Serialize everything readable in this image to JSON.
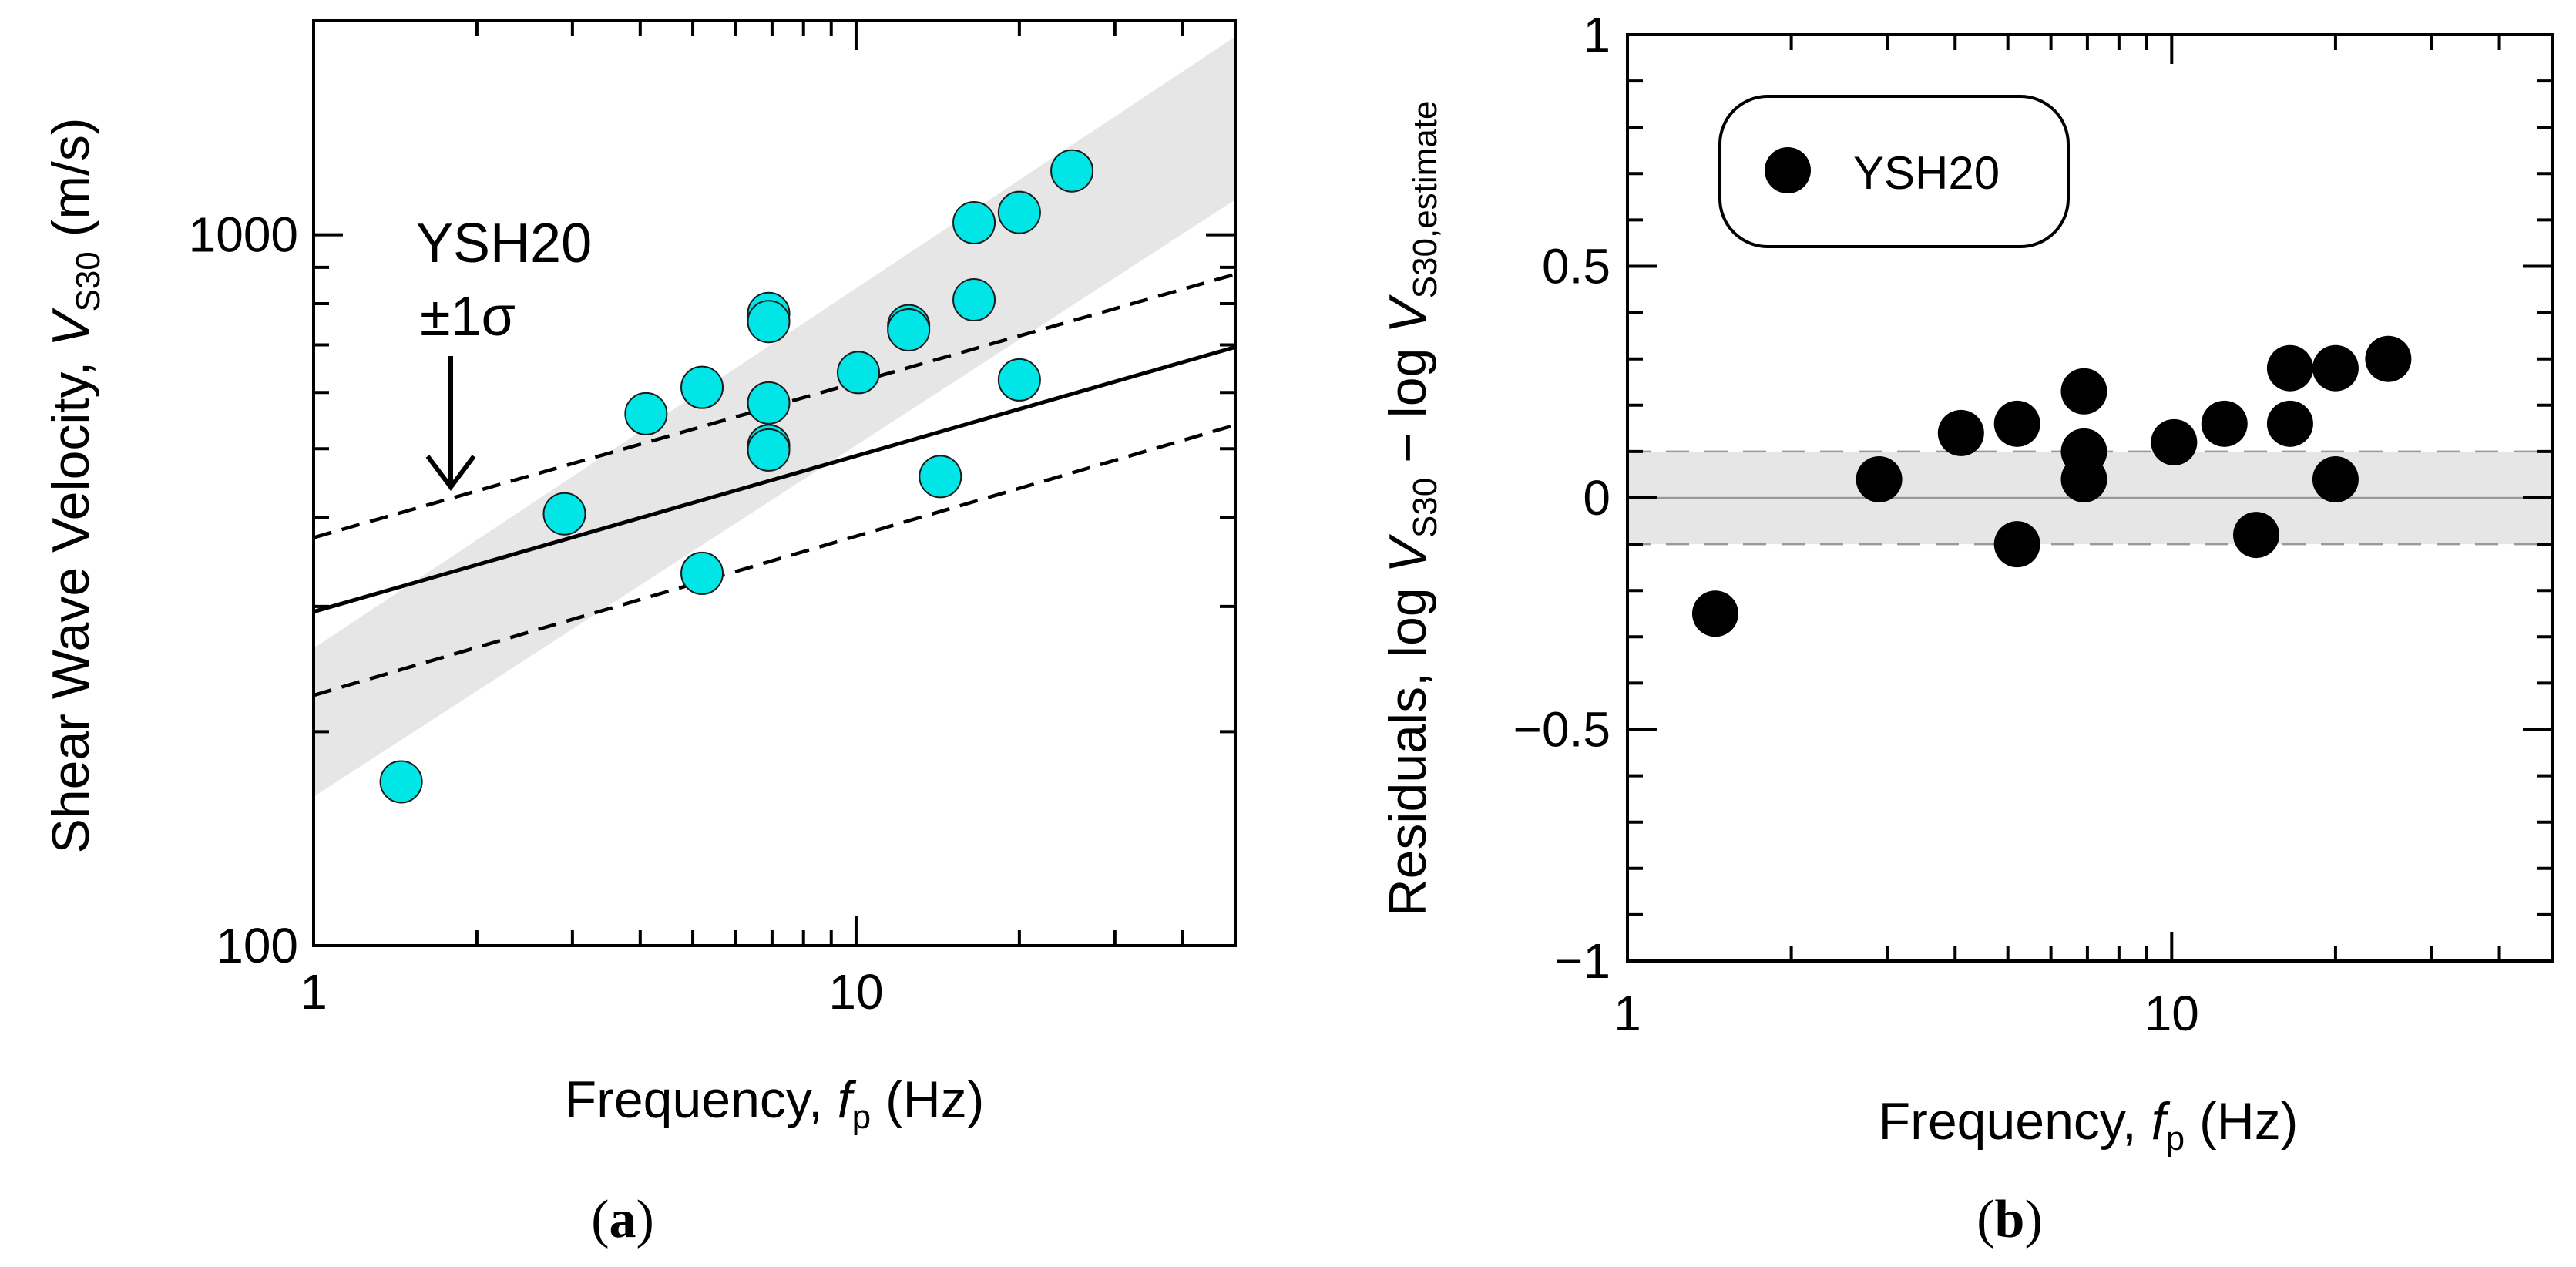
{
  "figure": {
    "panel_labels": [
      "(",
      "a",
      ")",
      "(",
      "b",
      ")"
    ]
  },
  "chart_data": [
    {
      "type": "scatter",
      "panel": "a",
      "x_scale": "log",
      "y_scale": "log",
      "xlim": [
        1,
        50
      ],
      "ylim": [
        100,
        2000
      ],
      "x_ticks": [
        1,
        10
      ],
      "x_tick_labels": [
        "1",
        "10"
      ],
      "y_ticks": [
        100,
        1000
      ],
      "y_tick_labels": [
        "100",
        "1000"
      ],
      "xlabel": {
        "pre": "Frequency, ",
        "var": "f",
        "sub": "p",
        "post": " (Hz)"
      },
      "ylabel": {
        "pre": "Shear Wave Velocity,  ",
        "var": "V",
        "sub": "S30",
        "post": " (m/s)"
      },
      "annotation": {
        "line1": "YSH20",
        "line2": "±1σ"
      },
      "colors": {
        "points": "#00e6e6",
        "points_edge": "#1a1a1a",
        "band": "#e6e6e6"
      },
      "band": {
        "x": [
          1,
          50
        ],
        "lower": [
          162,
          1120
        ],
        "upper": [
          262,
          1900
        ]
      },
      "model": {
        "name": "YSH20",
        "x": [
          1,
          50
        ],
        "y": [
          295,
          695
        ]
      },
      "model_plus_sigma": {
        "x": [
          1,
          50
        ],
        "y": [
          375,
          880
        ]
      },
      "model_minus_sigma": {
        "x": [
          1,
          50
        ],
        "y": [
          225,
          540
        ]
      },
      "series": [
        {
          "name": "data",
          "points": [
            {
              "x": 1.45,
              "y": 170
            },
            {
              "x": 2.9,
              "y": 405
            },
            {
              "x": 4.1,
              "y": 560
            },
            {
              "x": 5.2,
              "y": 610
            },
            {
              "x": 5.2,
              "y": 334
            },
            {
              "x": 6.9,
              "y": 775
            },
            {
              "x": 6.9,
              "y": 755
            },
            {
              "x": 6.9,
              "y": 580
            },
            {
              "x": 6.9,
              "y": 505
            },
            {
              "x": 6.9,
              "y": 498
            },
            {
              "x": 10.1,
              "y": 640
            },
            {
              "x": 12.5,
              "y": 745
            },
            {
              "x": 12.5,
              "y": 735
            },
            {
              "x": 14.3,
              "y": 457
            },
            {
              "x": 16.5,
              "y": 1040
            },
            {
              "x": 16.5,
              "y": 810
            },
            {
              "x": 20.0,
              "y": 1075
            },
            {
              "x": 20.0,
              "y": 625
            },
            {
              "x": 25.0,
              "y": 1230
            }
          ]
        }
      ]
    },
    {
      "type": "scatter",
      "panel": "b",
      "x_scale": "log",
      "y_scale": "linear",
      "xlim": [
        1,
        50
      ],
      "ylim": [
        -1,
        1
      ],
      "x_ticks": [
        1,
        10
      ],
      "x_tick_labels": [
        "1",
        "10"
      ],
      "y_ticks": [
        -1,
        -0.5,
        0,
        0.5,
        1
      ],
      "y_tick_labels": [
        "−1",
        "−0.5",
        "0",
        "0.5",
        "1"
      ],
      "xlabel": {
        "pre": "Frequency, ",
        "var": "f",
        "sub": "p",
        "post": " (Hz)"
      },
      "ylabel": {
        "pre": "Residuals, log ",
        "var": "V",
        "sub": "S30",
        "mid": " − log ",
        "var2": "V",
        "sub2": "S30,estimate"
      },
      "legend": {
        "label": "YSH20",
        "placement": "top-left"
      },
      "colors": {
        "points": "#000000",
        "band": "#e6e6e6",
        "zero_line": "#999999",
        "dash": "#999999"
      },
      "band": {
        "lower": -0.1,
        "upper": 0.1
      },
      "series": [
        {
          "name": "YSH20",
          "points": [
            {
              "x": 1.45,
              "y": -0.25
            },
            {
              "x": 2.9,
              "y": 0.04
            },
            {
              "x": 4.1,
              "y": 0.14
            },
            {
              "x": 5.2,
              "y": 0.16
            },
            {
              "x": 5.2,
              "y": -0.1
            },
            {
              "x": 6.9,
              "y": 0.23
            },
            {
              "x": 6.9,
              "y": 0.1
            },
            {
              "x": 6.9,
              "y": 0.04
            },
            {
              "x": 10.1,
              "y": 0.12
            },
            {
              "x": 12.5,
              "y": 0.16
            },
            {
              "x": 14.3,
              "y": -0.08
            },
            {
              "x": 16.5,
              "y": 0.28
            },
            {
              "x": 16.5,
              "y": 0.16
            },
            {
              "x": 20.0,
              "y": 0.28
            },
            {
              "x": 20.0,
              "y": 0.04
            },
            {
              "x": 25.0,
              "y": 0.3
            }
          ]
        }
      ]
    }
  ]
}
